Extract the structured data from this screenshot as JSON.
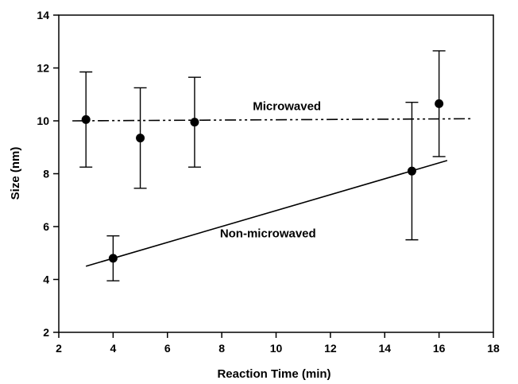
{
  "chart_data": {
    "type": "scatter",
    "xlabel": "Reaction Time (min)",
    "ylabel": "Size (nm)",
    "xlim": [
      2,
      18
    ],
    "ylim": [
      2,
      14
    ],
    "xticks": [
      2,
      4,
      6,
      8,
      10,
      12,
      14,
      16,
      18
    ],
    "yticks": [
      2,
      4,
      6,
      8,
      10,
      12,
      14
    ],
    "grid": false,
    "points": [
      {
        "x": 3,
        "y": 10.05,
        "err": 1.8
      },
      {
        "x": 4,
        "y": 4.8,
        "err": 0.85
      },
      {
        "x": 5,
        "y": 9.35,
        "err": 1.9
      },
      {
        "x": 7,
        "y": 9.95,
        "err": 1.7
      },
      {
        "x": 15,
        "y": 8.1,
        "err": 2.6
      },
      {
        "x": 16,
        "y": 10.65,
        "err": 2.0
      }
    ],
    "fit_lines": [
      {
        "label": "Microwaved",
        "style": "dash-dot-dot",
        "x": [
          2.5,
          17.2
        ],
        "y": [
          10.0,
          10.08
        ]
      },
      {
        "label": "Non-microwaved",
        "style": "solid",
        "x": [
          3.0,
          16.3
        ],
        "y": [
          4.5,
          8.5
        ]
      }
    ],
    "annotations": [
      {
        "text": "Microwaved",
        "x": 10.4,
        "y": 10.4
      },
      {
        "text": "Non-microwaved",
        "x": 9.7,
        "y": 5.6
      }
    ]
  }
}
